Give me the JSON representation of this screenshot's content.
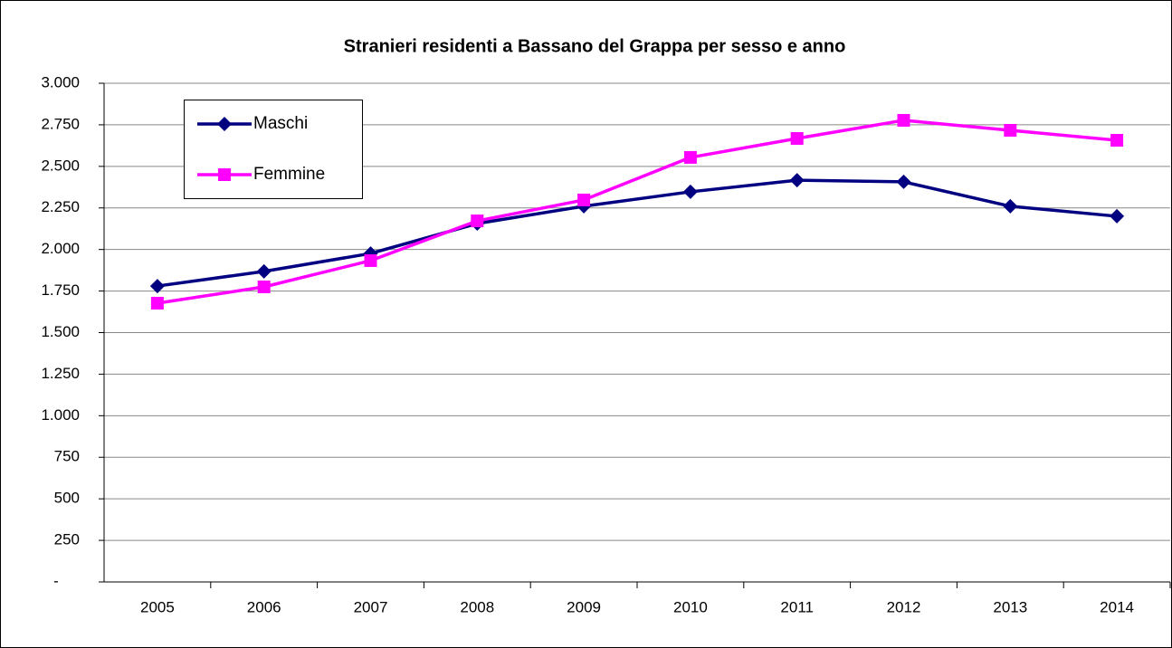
{
  "chart_data": {
    "type": "line",
    "title": "Stranieri residenti a Bassano del Grappa per sesso e anno",
    "categories": [
      "2005",
      "2006",
      "2007",
      "2008",
      "2009",
      "2010",
      "2011",
      "2012",
      "2013",
      "2014"
    ],
    "series": [
      {
        "name": "Maschi",
        "color": "#000080",
        "marker": "diamond",
        "values": [
          1780,
          1868,
          1976,
          2156,
          2260,
          2347,
          2417,
          2407,
          2260,
          2200
        ]
      },
      {
        "name": "Femmine",
        "color": "#ff00ff",
        "marker": "square",
        "values": [
          1677,
          1775,
          1933,
          2172,
          2298,
          2554,
          2668,
          2777,
          2717,
          2657
        ]
      }
    ],
    "ylim": [
      0,
      3000
    ],
    "yticks": [
      {
        "value": 0,
        "label": "-"
      },
      250,
      500,
      750,
      {
        "value": 1000,
        "label": "1.000"
      },
      {
        "value": 1250,
        "label": "1.250"
      },
      {
        "value": 1500,
        "label": "1.500"
      },
      {
        "value": 1750,
        "label": "1.750"
      },
      {
        "value": 2000,
        "label": "2.000"
      },
      {
        "value": 2250,
        "label": "2.250"
      },
      {
        "value": 2500,
        "label": "2.500"
      },
      {
        "value": 2750,
        "label": "2.750"
      },
      {
        "value": 3000,
        "label": "3.000"
      }
    ],
    "grid": true,
    "legend": "upper left"
  }
}
